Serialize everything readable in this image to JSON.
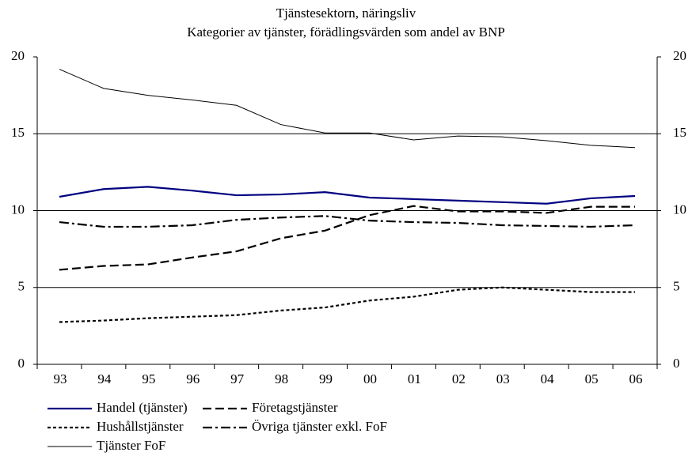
{
  "chart_data": {
    "type": "line",
    "title": "Tjänstesektorn, näringsliv",
    "subtitle": "Kategorier av tjänster, förädlingsvärden som andel av BNP",
    "categories": [
      "93",
      "94",
      "95",
      "96",
      "97",
      "98",
      "99",
      "00",
      "01",
      "02",
      "03",
      "04",
      "05",
      "06"
    ],
    "ylim": [
      0,
      20
    ],
    "yticks": [
      0,
      5,
      10,
      15,
      20
    ],
    "y2lim": [
      0,
      20
    ],
    "y2ticks": [
      0,
      5,
      10,
      15,
      20
    ],
    "grid": true,
    "series": [
      {
        "name": "Handel (tjänster)",
        "color": "#000080",
        "dash": "solid",
        "values": [
          10.9,
          11.4,
          11.55,
          11.3,
          11.0,
          11.05,
          11.2,
          10.85,
          10.75,
          10.65,
          10.55,
          10.45,
          10.8,
          10.95
        ]
      },
      {
        "name": "Företagstjänster",
        "color": "#000000",
        "dash": "dashed",
        "values": [
          6.15,
          6.4,
          6.5,
          6.95,
          7.35,
          8.2,
          8.7,
          9.7,
          10.3,
          9.95,
          9.95,
          9.85,
          10.25,
          10.25
        ]
      },
      {
        "name": "Hushållstjänster",
        "color": "#000000",
        "dash": "dotted",
        "values": [
          2.75,
          2.85,
          3.0,
          3.1,
          3.2,
          3.5,
          3.7,
          4.15,
          4.4,
          4.85,
          5.0,
          4.85,
          4.7,
          4.7
        ]
      },
      {
        "name": "Övriga tjänster exkl. FoF",
        "color": "#000000",
        "dash": "dashdot",
        "values": [
          9.25,
          8.95,
          8.95,
          9.05,
          9.4,
          9.55,
          9.65,
          9.35,
          9.25,
          9.2,
          9.05,
          9.0,
          8.95,
          9.05
        ]
      },
      {
        "name": "Tjänster FoF",
        "color": "#000000",
        "dash": "thin",
        "values": [
          19.2,
          17.95,
          17.5,
          17.2,
          16.85,
          15.6,
          15.05,
          15.05,
          14.6,
          14.85,
          14.8,
          14.55,
          14.25,
          14.1
        ]
      }
    ]
  }
}
